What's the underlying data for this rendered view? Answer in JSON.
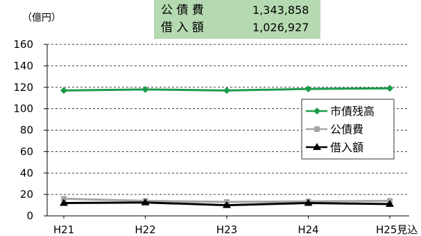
{
  "chart_data": {
    "type": "line",
    "title": "",
    "unit_label": "（億円）",
    "xlabel": "",
    "ylabel": "",
    "categories": [
      "H21",
      "H22",
      "H23",
      "H24",
      "H25見込"
    ],
    "ylim": [
      0,
      160
    ],
    "yticks": [
      0,
      20,
      40,
      60,
      80,
      100,
      120,
      140,
      160
    ],
    "grid": "dashed horizontal",
    "legend_position": "right",
    "series": [
      {
        "name": "市債残高",
        "color": "#1a9a4a",
        "marker": "diamond",
        "values": [
          117,
          118,
          117,
          118.5,
          119
        ]
      },
      {
        "name": "公債費",
        "color": "#a6a6a6",
        "marker": "square",
        "values": [
          16,
          14,
          13,
          13.5,
          14
        ]
      },
      {
        "name": "借入額",
        "color": "#000000",
        "marker": "triangle",
        "values": [
          12,
          12.5,
          10,
          12,
          11
        ]
      }
    ],
    "info_box": {
      "background": "#b5d9b0",
      "rows": [
        {
          "label": "公 債 費",
          "value": "1,343,858"
        },
        {
          "label": "借 入 額",
          "value": "1,026,927"
        }
      ]
    }
  }
}
